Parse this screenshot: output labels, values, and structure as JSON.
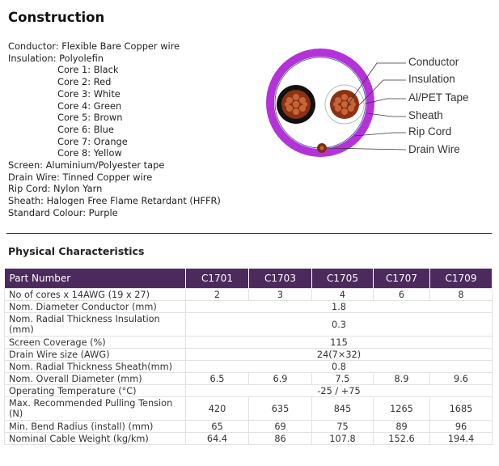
{
  "construction": {
    "title": "Construction",
    "conductor": "Conductor: Flexible Bare Copper wire",
    "insulation": "Insulation: Polyolefin",
    "cores": [
      "Core 1: Black",
      "Core 2: Red",
      "Core 3: White",
      "Core 4: Green",
      "Core 5: Brown",
      "Core 6: Blue",
      "Core 7: Orange",
      "Core 8: Yellow"
    ],
    "screen": "Screen: Aluminium/Polyester tape",
    "drain_wire": "Drain Wire: Tinned Copper wire",
    "rip_cord": "Rip Cord: Nylon Yarn",
    "sheath": "Sheath: Halogen Free Flame Retardant (HFFR)",
    "standard_colour": "Standard Colour: Purple"
  },
  "diagram": {
    "labels": [
      "Conductor",
      "Insulation",
      "Al/PET Tape",
      "Sheath",
      "Rip Cord",
      "Drain Wire"
    ],
    "colors": {
      "sheath": "#b333d9",
      "conductor": "#8b3212",
      "insulation_dark": "#111111",
      "tape": "#2e4d8f"
    }
  },
  "physical": {
    "title": "Physical Characteristics",
    "headers": [
      "Part Number",
      "C1701",
      "C1703",
      "C1705",
      "C1707",
      "C1709"
    ],
    "rows": [
      {
        "label": "No of cores x 14AWG (19 x 27)",
        "values": [
          "2",
          "3",
          "4",
          "6",
          "8"
        ]
      },
      {
        "label": "Nom. Diameter Conductor (mm)",
        "value": "1.8"
      },
      {
        "label": "Nom. Radial Thickness Insulation (mm)",
        "value": "0.3"
      },
      {
        "label": "Screen Coverage (%)",
        "value": "115"
      },
      {
        "label": "Drain Wire size (AWG)",
        "value": "24(7×32)"
      },
      {
        "label": "Nom. Radial Thickness Sheath(mm)",
        "value": "0.8"
      },
      {
        "label": "Nom. Overall Diameter (mm)",
        "values": [
          "6.5",
          "6.9",
          "7.5",
          "8.9",
          "9.6"
        ]
      },
      {
        "label": "Operating Temperature  (°C)",
        "value": "-25 / +75"
      },
      {
        "label": "Max. Recommended Pulling Tension (N)",
        "values": [
          "420",
          "635",
          "845",
          "1265",
          "1685"
        ]
      },
      {
        "label": "Min. Bend Radius (install) (mm)",
        "values": [
          "65",
          "69",
          "75",
          "89",
          "96"
        ]
      },
      {
        "label": "Nominal Cable Weight (kg/km)",
        "values": [
          "64.4",
          "86",
          "107.8",
          "152.6",
          "194.4"
        ]
      }
    ]
  }
}
